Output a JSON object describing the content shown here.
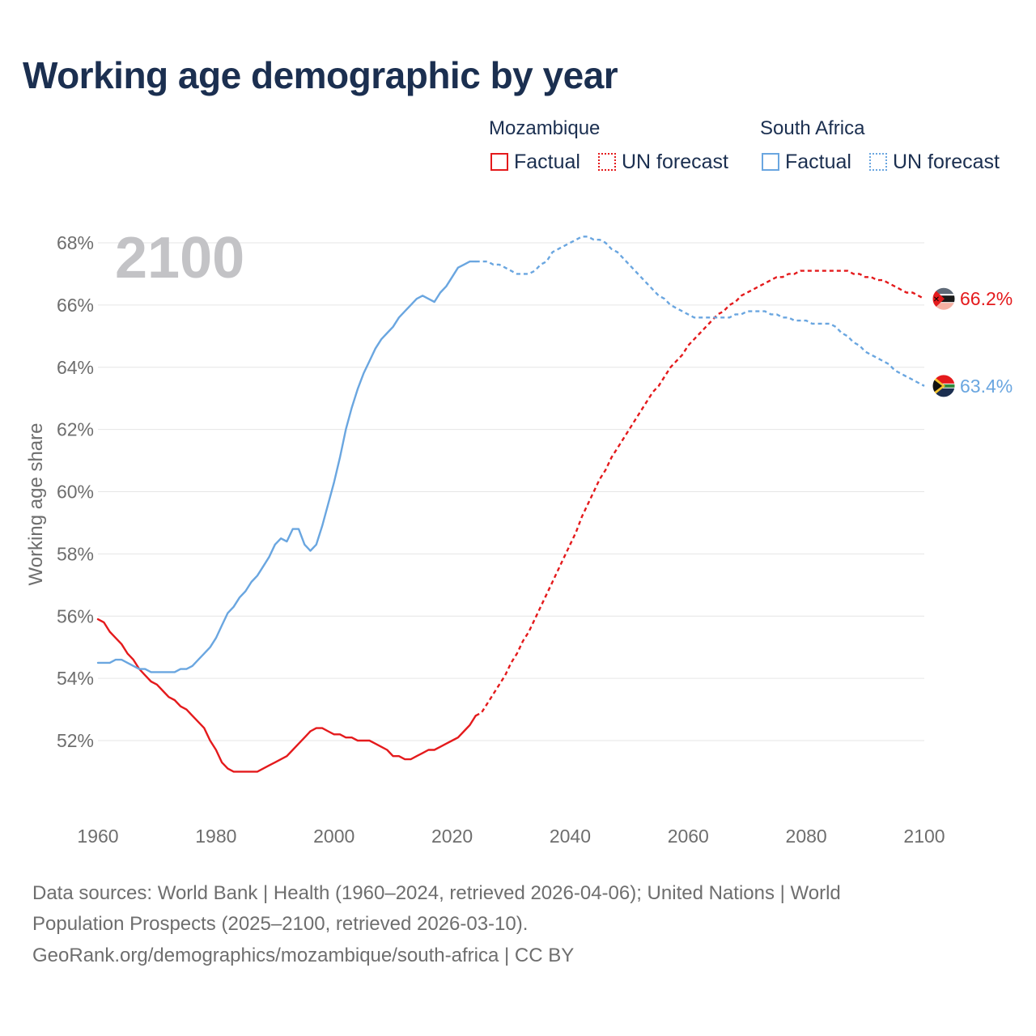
{
  "title": "Working age demographic by year",
  "legend": {
    "groups": [
      {
        "country": "Mozambique",
        "color": "#e41a1c",
        "factual_label": "Factual",
        "forecast_label": "UN forecast"
      },
      {
        "country": "South Africa",
        "color": "#6aa6e0",
        "factual_label": "Factual",
        "forecast_label": "UN forecast"
      }
    ]
  },
  "footer": {
    "line1": "Data sources: World Bank | Health (1960–2024, retrieved 2026-04-06); United Nations | World",
    "line2": "Population Prospects (2025–2100, retrieved 2026-03-10).",
    "line3": "GeoRank.org/demographics/mozambique/south-africa | CC BY"
  },
  "chart_data": {
    "type": "line",
    "title": "Working age demographic by year",
    "xlabel": "",
    "ylabel": "Working age share",
    "xlim": [
      1960,
      2100
    ],
    "ylim": [
      49.6,
      68.6
    ],
    "x_ticks": [
      1960,
      1980,
      2000,
      2020,
      2040,
      2060,
      2080,
      2100
    ],
    "x_tick_labels": [
      "1960",
      "1980",
      "2000",
      "2020",
      "2040",
      "2060",
      "2080",
      "2100"
    ],
    "y_ticks": [
      52,
      54,
      56,
      58,
      60,
      62,
      64,
      66,
      68
    ],
    "y_tick_labels": [
      "52%",
      "54%",
      "56%",
      "58%",
      "60%",
      "62%",
      "64%",
      "66%",
      "68%"
    ],
    "grid": true,
    "year_watermark": "2100",
    "factual_end_year": 2024,
    "series": [
      {
        "name": "Mozambique",
        "color": "#e41a1c",
        "end_label": "66.2%",
        "flag_icon": "mozambique-flag-icon",
        "factual": [
          [
            1960,
            55.9
          ],
          [
            1961,
            55.8
          ],
          [
            1962,
            55.5
          ],
          [
            1963,
            55.3
          ],
          [
            1964,
            55.1
          ],
          [
            1965,
            54.8
          ],
          [
            1966,
            54.6
          ],
          [
            1967,
            54.3
          ],
          [
            1968,
            54.1
          ],
          [
            1969,
            53.9
          ],
          [
            1970,
            53.8
          ],
          [
            1971,
            53.6
          ],
          [
            1972,
            53.4
          ],
          [
            1973,
            53.3
          ],
          [
            1974,
            53.1
          ],
          [
            1975,
            53.0
          ],
          [
            1976,
            52.8
          ],
          [
            1977,
            52.6
          ],
          [
            1978,
            52.4
          ],
          [
            1979,
            52.0
          ],
          [
            1980,
            51.7
          ],
          [
            1981,
            51.3
          ],
          [
            1982,
            51.1
          ],
          [
            1983,
            51.0
          ],
          [
            1984,
            51.0
          ],
          [
            1985,
            51.0
          ],
          [
            1986,
            51.0
          ],
          [
            1987,
            51.0
          ],
          [
            1988,
            51.1
          ],
          [
            1989,
            51.2
          ],
          [
            1990,
            51.3
          ],
          [
            1991,
            51.4
          ],
          [
            1992,
            51.5
          ],
          [
            1993,
            51.7
          ],
          [
            1994,
            51.9
          ],
          [
            1995,
            52.1
          ],
          [
            1996,
            52.3
          ],
          [
            1997,
            52.4
          ],
          [
            1998,
            52.4
          ],
          [
            1999,
            52.3
          ],
          [
            2000,
            52.2
          ],
          [
            2001,
            52.2
          ],
          [
            2002,
            52.1
          ],
          [
            2003,
            52.1
          ],
          [
            2004,
            52.0
          ],
          [
            2005,
            52.0
          ],
          [
            2006,
            52.0
          ],
          [
            2007,
            51.9
          ],
          [
            2008,
            51.8
          ],
          [
            2009,
            51.7
          ],
          [
            2010,
            51.5
          ],
          [
            2011,
            51.5
          ],
          [
            2012,
            51.4
          ],
          [
            2013,
            51.4
          ],
          [
            2014,
            51.5
          ],
          [
            2015,
            51.6
          ],
          [
            2016,
            51.7
          ],
          [
            2017,
            51.7
          ],
          [
            2018,
            51.8
          ],
          [
            2019,
            51.9
          ],
          [
            2020,
            52.0
          ],
          [
            2021,
            52.1
          ],
          [
            2022,
            52.3
          ],
          [
            2023,
            52.5
          ],
          [
            2024,
            52.8
          ]
        ],
        "forecast": [
          [
            2024,
            52.8
          ],
          [
            2025,
            52.9
          ],
          [
            2026,
            53.2
          ],
          [
            2027,
            53.5
          ],
          [
            2028,
            53.8
          ],
          [
            2029,
            54.1
          ],
          [
            2030,
            54.5
          ],
          [
            2031,
            54.8
          ],
          [
            2032,
            55.2
          ],
          [
            2033,
            55.5
          ],
          [
            2034,
            55.9
          ],
          [
            2035,
            56.3
          ],
          [
            2036,
            56.7
          ],
          [
            2037,
            57.1
          ],
          [
            2038,
            57.5
          ],
          [
            2039,
            57.9
          ],
          [
            2040,
            58.3
          ],
          [
            2041,
            58.7
          ],
          [
            2042,
            59.2
          ],
          [
            2043,
            59.6
          ],
          [
            2044,
            60.0
          ],
          [
            2045,
            60.4
          ],
          [
            2046,
            60.7
          ],
          [
            2047,
            61.1
          ],
          [
            2048,
            61.4
          ],
          [
            2049,
            61.7
          ],
          [
            2050,
            62.0
          ],
          [
            2051,
            62.3
          ],
          [
            2052,
            62.6
          ],
          [
            2053,
            62.9
          ],
          [
            2054,
            63.2
          ],
          [
            2055,
            63.4
          ],
          [
            2056,
            63.7
          ],
          [
            2057,
            64.0
          ],
          [
            2058,
            64.2
          ],
          [
            2059,
            64.4
          ],
          [
            2060,
            64.7
          ],
          [
            2061,
            64.9
          ],
          [
            2062,
            65.1
          ],
          [
            2063,
            65.3
          ],
          [
            2064,
            65.5
          ],
          [
            2065,
            65.7
          ],
          [
            2066,
            65.8
          ],
          [
            2067,
            66.0
          ],
          [
            2068,
            66.1
          ],
          [
            2069,
            66.3
          ],
          [
            2070,
            66.4
          ],
          [
            2071,
            66.5
          ],
          [
            2072,
            66.6
          ],
          [
            2073,
            66.7
          ],
          [
            2074,
            66.8
          ],
          [
            2075,
            66.9
          ],
          [
            2076,
            66.9
          ],
          [
            2077,
            67.0
          ],
          [
            2078,
            67.0
          ],
          [
            2079,
            67.1
          ],
          [
            2080,
            67.1
          ],
          [
            2081,
            67.1
          ],
          [
            2082,
            67.1
          ],
          [
            2083,
            67.1
          ],
          [
            2084,
            67.1
          ],
          [
            2085,
            67.1
          ],
          [
            2086,
            67.1
          ],
          [
            2087,
            67.1
          ],
          [
            2088,
            67.0
          ],
          [
            2089,
            67.0
          ],
          [
            2090,
            66.9
          ],
          [
            2091,
            66.9
          ],
          [
            2092,
            66.8
          ],
          [
            2093,
            66.8
          ],
          [
            2094,
            66.7
          ],
          [
            2095,
            66.6
          ],
          [
            2096,
            66.5
          ],
          [
            2097,
            66.4
          ],
          [
            2098,
            66.4
          ],
          [
            2099,
            66.3
          ],
          [
            2100,
            66.2
          ]
        ]
      },
      {
        "name": "South Africa",
        "color": "#6aa6e0",
        "end_label": "63.4%",
        "flag_icon": "south-africa-flag-icon",
        "factual": [
          [
            1960,
            54.5
          ],
          [
            1961,
            54.5
          ],
          [
            1962,
            54.5
          ],
          [
            1963,
            54.6
          ],
          [
            1964,
            54.6
          ],
          [
            1965,
            54.5
          ],
          [
            1966,
            54.4
          ],
          [
            1967,
            54.3
          ],
          [
            1968,
            54.3
          ],
          [
            1969,
            54.2
          ],
          [
            1970,
            54.2
          ],
          [
            1971,
            54.2
          ],
          [
            1972,
            54.2
          ],
          [
            1973,
            54.2
          ],
          [
            1974,
            54.3
          ],
          [
            1975,
            54.3
          ],
          [
            1976,
            54.4
          ],
          [
            1977,
            54.6
          ],
          [
            1978,
            54.8
          ],
          [
            1979,
            55.0
          ],
          [
            1980,
            55.3
          ],
          [
            1981,
            55.7
          ],
          [
            1982,
            56.1
          ],
          [
            1983,
            56.3
          ],
          [
            1984,
            56.6
          ],
          [
            1985,
            56.8
          ],
          [
            1986,
            57.1
          ],
          [
            1987,
            57.3
          ],
          [
            1988,
            57.6
          ],
          [
            1989,
            57.9
          ],
          [
            1990,
            58.3
          ],
          [
            1991,
            58.5
          ],
          [
            1992,
            58.4
          ],
          [
            1993,
            58.8
          ],
          [
            1994,
            58.8
          ],
          [
            1995,
            58.3
          ],
          [
            1996,
            58.1
          ],
          [
            1997,
            58.3
          ],
          [
            1998,
            58.9
          ],
          [
            1999,
            59.6
          ],
          [
            2000,
            60.3
          ],
          [
            2001,
            61.1
          ],
          [
            2002,
            62.0
          ],
          [
            2003,
            62.7
          ],
          [
            2004,
            63.3
          ],
          [
            2005,
            63.8
          ],
          [
            2006,
            64.2
          ],
          [
            2007,
            64.6
          ],
          [
            2008,
            64.9
          ],
          [
            2009,
            65.1
          ],
          [
            2010,
            65.3
          ],
          [
            2011,
            65.6
          ],
          [
            2012,
            65.8
          ],
          [
            2013,
            66.0
          ],
          [
            2014,
            66.2
          ],
          [
            2015,
            66.3
          ],
          [
            2016,
            66.2
          ],
          [
            2017,
            66.1
          ],
          [
            2018,
            66.4
          ],
          [
            2019,
            66.6
          ],
          [
            2020,
            66.9
          ],
          [
            2021,
            67.2
          ],
          [
            2022,
            67.3
          ],
          [
            2023,
            67.4
          ],
          [
            2024,
            67.4
          ]
        ],
        "forecast": [
          [
            2024,
            67.4
          ],
          [
            2025,
            67.4
          ],
          [
            2026,
            67.4
          ],
          [
            2027,
            67.3
          ],
          [
            2028,
            67.3
          ],
          [
            2029,
            67.2
          ],
          [
            2030,
            67.1
          ],
          [
            2031,
            67.0
          ],
          [
            2032,
            67.0
          ],
          [
            2033,
            67.0
          ],
          [
            2034,
            67.1
          ],
          [
            2035,
            67.3
          ],
          [
            2036,
            67.4
          ],
          [
            2037,
            67.7
          ],
          [
            2038,
            67.8
          ],
          [
            2039,
            67.9
          ],
          [
            2040,
            68.0
          ],
          [
            2041,
            68.1
          ],
          [
            2042,
            68.2
          ],
          [
            2043,
            68.2
          ],
          [
            2044,
            68.1
          ],
          [
            2045,
            68.1
          ],
          [
            2046,
            68.0
          ],
          [
            2047,
            67.8
          ],
          [
            2048,
            67.7
          ],
          [
            2049,
            67.5
          ],
          [
            2050,
            67.3
          ],
          [
            2051,
            67.1
          ],
          [
            2052,
            66.9
          ],
          [
            2053,
            66.7
          ],
          [
            2054,
            66.5
          ],
          [
            2055,
            66.3
          ],
          [
            2056,
            66.2
          ],
          [
            2057,
            66.0
          ],
          [
            2058,
            65.9
          ],
          [
            2059,
            65.8
          ],
          [
            2060,
            65.7
          ],
          [
            2061,
            65.6
          ],
          [
            2062,
            65.6
          ],
          [
            2063,
            65.6
          ],
          [
            2064,
            65.6
          ],
          [
            2065,
            65.6
          ],
          [
            2066,
            65.6
          ],
          [
            2067,
            65.6
          ],
          [
            2068,
            65.7
          ],
          [
            2069,
            65.7
          ],
          [
            2070,
            65.8
          ],
          [
            2071,
            65.8
          ],
          [
            2072,
            65.8
          ],
          [
            2073,
            65.8
          ],
          [
            2074,
            65.7
          ],
          [
            2075,
            65.7
          ],
          [
            2076,
            65.6
          ],
          [
            2077,
            65.6
          ],
          [
            2078,
            65.5
          ],
          [
            2079,
            65.5
          ],
          [
            2080,
            65.5
          ],
          [
            2081,
            65.4
          ],
          [
            2082,
            65.4
          ],
          [
            2083,
            65.4
          ],
          [
            2084,
            65.4
          ],
          [
            2085,
            65.3
          ],
          [
            2086,
            65.1
          ],
          [
            2087,
            65.0
          ],
          [
            2088,
            64.8
          ],
          [
            2089,
            64.7
          ],
          [
            2090,
            64.5
          ],
          [
            2091,
            64.4
          ],
          [
            2092,
            64.3
          ],
          [
            2093,
            64.2
          ],
          [
            2094,
            64.1
          ],
          [
            2095,
            63.9
          ],
          [
            2096,
            63.8
          ],
          [
            2097,
            63.7
          ],
          [
            2098,
            63.6
          ],
          [
            2099,
            63.5
          ],
          [
            2100,
            63.4
          ]
        ]
      }
    ]
  }
}
